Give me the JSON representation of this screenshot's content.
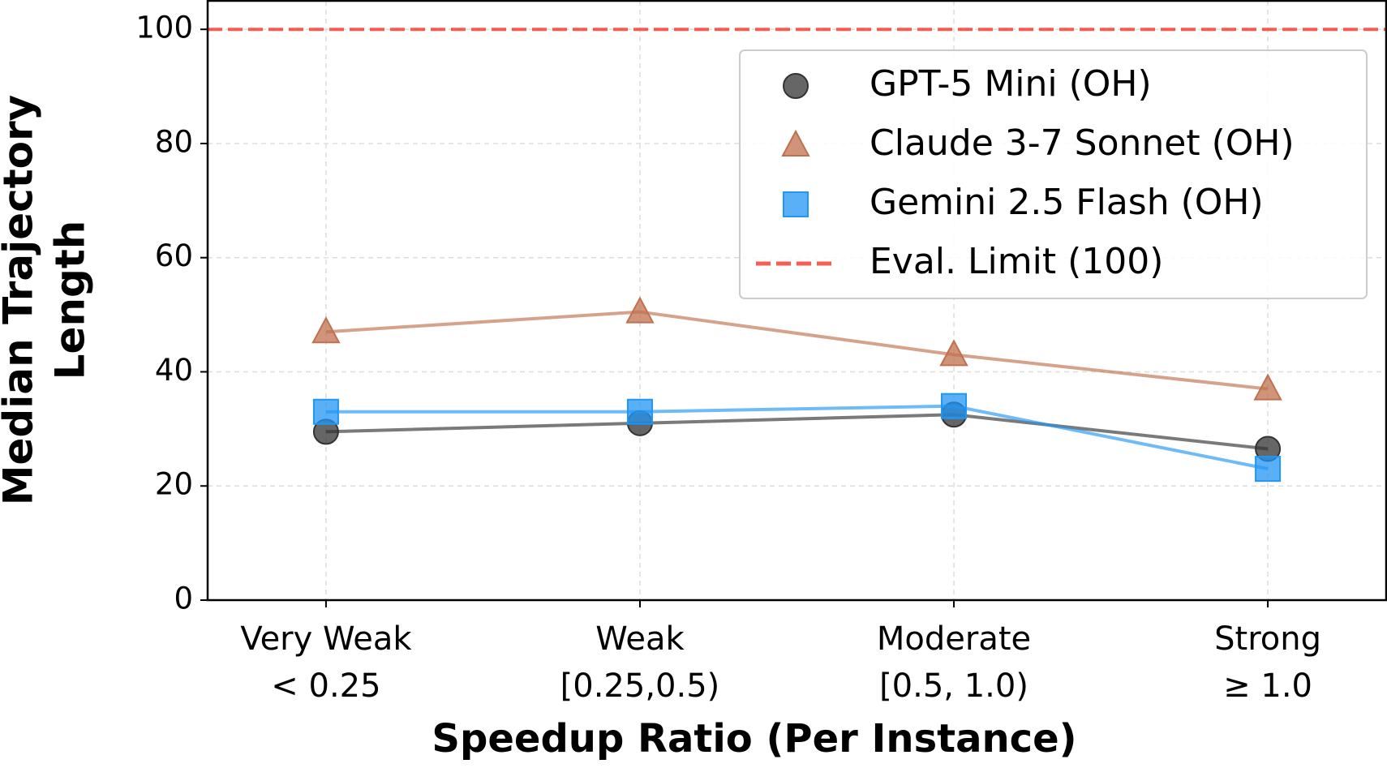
{
  "chart_data": {
    "type": "line",
    "xlabel": "Speedup Ratio (Per Instance)",
    "ylabel": [
      "Median Trajectory",
      "Length"
    ],
    "categories": [
      [
        "Very Weak",
        "< 0.25"
      ],
      [
        "Weak",
        "[0.25,0.5)"
      ],
      [
        "Moderate",
        "[0.5, 1.0)"
      ],
      [
        "Strong",
        "≥ 1.0"
      ]
    ],
    "series": [
      {
        "name": "GPT-5 Mini (OH)",
        "color": "#333333",
        "marker": "circle",
        "values": [
          29.5,
          31,
          32.5,
          26.5
        ]
      },
      {
        "name": "Claude 3-7 Sonnet (OH)",
        "color": "#c0704f",
        "marker": "triangle",
        "values": [
          47,
          50.5,
          43,
          37
        ]
      },
      {
        "name": "Gemini 2.5 Flash (OH)",
        "color": "#2196f3",
        "marker": "square",
        "values": [
          33,
          33,
          34,
          23
        ]
      }
    ],
    "reference_line": {
      "name": "Eval. Limit (100)",
      "value": 100,
      "color": "#f44336"
    },
    "ylim": [
      0,
      105
    ],
    "yticks": [
      0,
      20,
      40,
      60,
      80,
      100
    ],
    "grid": true,
    "legend": "upper right"
  }
}
